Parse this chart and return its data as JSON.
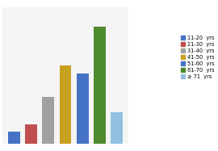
{
  "categories": [
    "11-20 yrs",
    "21-30 yrs",
    "31-40 yrs",
    "41-50 yrs",
    "51-60 yrs",
    "61-70 yrs",
    "≥ 71 yrs"
  ],
  "values": [
    3,
    5,
    12,
    20,
    18,
    30,
    8
  ],
  "bar_colors": [
    "#4472c4",
    "#c0504d",
    "#9fa0a0",
    "#c8a020",
    "#4472c4",
    "#4e8b2e",
    "#92c0e0"
  ],
  "legend_labels": [
    "11-20  yrs",
    "21-30  yrs",
    "31-40  yrs",
    "41-50  yrs",
    "51-60  yrs",
    "61-70  yrs",
    "≥ 71  yrs"
  ],
  "background_color": "#ffffff",
  "plot_bg_color": "#f5f5f5",
  "ylim": [
    0,
    35
  ],
  "grid_color": "#ffffff"
}
